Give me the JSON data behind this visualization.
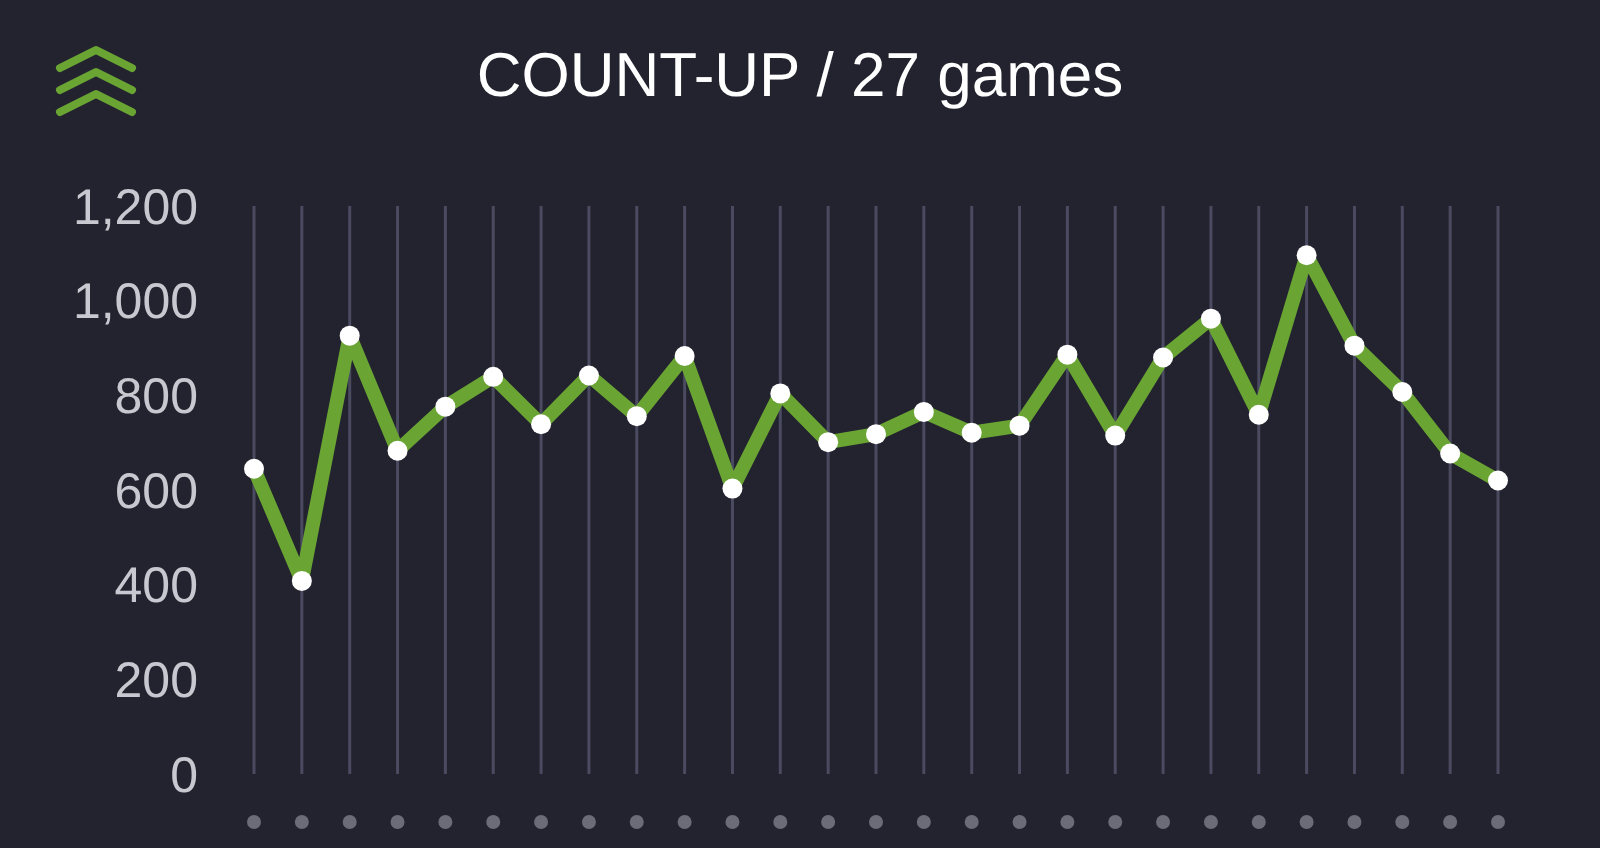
{
  "chart_data": {
    "type": "line",
    "title": "COUNT-UP / 27 games",
    "categories": [
      null,
      null,
      null,
      null,
      null,
      null,
      null,
      null,
      null,
      null,
      null,
      null,
      null,
      null,
      null,
      null,
      null,
      null,
      null,
      null,
      null,
      null,
      null,
      null,
      null,
      null,
      null
    ],
    "series": [
      {
        "color": "#6aa534",
        "values": [
          645,
          408,
          926,
          683,
          776,
          839,
          739,
          842,
          756,
          883,
          603,
          804,
          701,
          718,
          765,
          721,
          736,
          886,
          715,
          880,
          962,
          759,
          1096,
          905,
          807,
          677,
          620
        ]
      }
    ],
    "ylim": [
      0,
      1200
    ],
    "yticks": [
      0,
      200,
      400,
      600,
      800,
      {
        "value": 1000,
        "label": "1,000"
      },
      {
        "value": 1200,
        "label": "1,200"
      }
    ],
    "grid": "x",
    "legend": false,
    "marker": "circle",
    "line_style": "solid"
  }
}
